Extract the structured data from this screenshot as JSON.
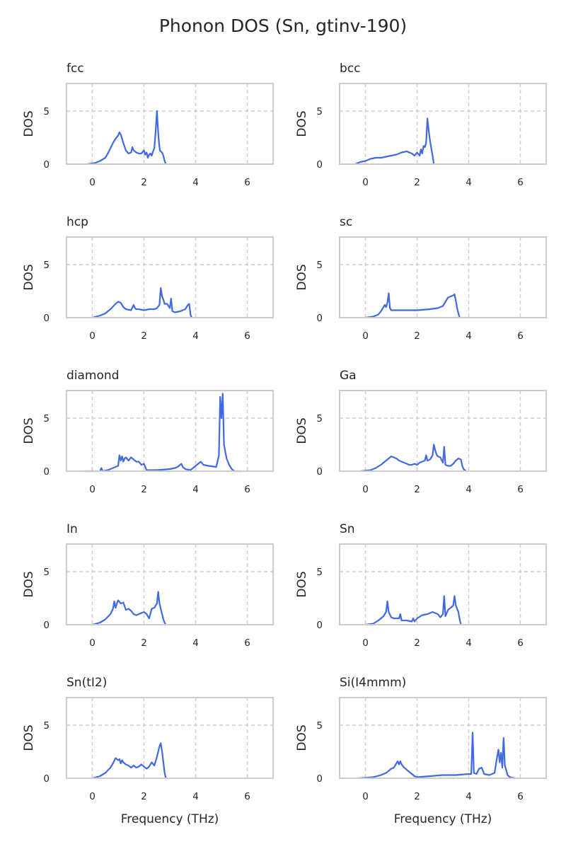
{
  "figure": {
    "title": "Phonon DOS (Sn, gtinv-190)",
    "line_color": "#4169e1",
    "grid_color": "#cccccc",
    "frame_color": "#cccccc"
  },
  "chart_data": [
    {
      "type": "line",
      "title": "fcc",
      "xlabel": "",
      "ylabel": "DOS",
      "xlim": [
        -1,
        7
      ],
      "ylim": [
        0,
        7.6
      ],
      "xticks": [
        0,
        2,
        4,
        6
      ],
      "yticks": [
        0,
        5
      ],
      "grid": true,
      "series": [
        {
          "x": [
            -0.2,
            0.1,
            0.3,
            0.5,
            0.6,
            0.7,
            0.8,
            0.9,
            1.0,
            1.05,
            1.1,
            1.2,
            1.3,
            1.4,
            1.5,
            1.55,
            1.6,
            1.7,
            1.8,
            1.9,
            2.0,
            2.05,
            2.1,
            2.15,
            2.2,
            2.25,
            2.3,
            2.35,
            2.4,
            2.45,
            2.5,
            2.55,
            2.58,
            2.62,
            2.65,
            2.7,
            2.75,
            2.8,
            2.85
          ],
          "y": [
            0,
            0.1,
            0.3,
            0.6,
            1.0,
            1.5,
            2.0,
            2.4,
            2.7,
            3.0,
            2.8,
            2.0,
            1.3,
            1.0,
            1.1,
            1.6,
            1.3,
            1.1,
            1.0,
            1.0,
            1.3,
            0.9,
            1.1,
            0.6,
            0.9,
            1.0,
            0.8,
            1.2,
            1.5,
            3.0,
            5.0,
            3.0,
            2.0,
            1.3,
            1.2,
            1.1,
            0.8,
            0.3,
            0
          ]
        }
      ]
    },
    {
      "type": "line",
      "title": "bcc",
      "xlabel": "",
      "ylabel": "DOS",
      "xlim": [
        -1,
        7
      ],
      "ylim": [
        0,
        7.6
      ],
      "xticks": [
        0,
        2,
        4,
        6
      ],
      "yticks": [
        0,
        5
      ],
      "grid": true,
      "series": [
        {
          "x": [
            -0.4,
            -0.2,
            0.0,
            0.2,
            0.4,
            0.6,
            0.8,
            1.0,
            1.2,
            1.4,
            1.6,
            1.7,
            1.8,
            1.9,
            2.0,
            2.1,
            2.15,
            2.2,
            2.25,
            2.3,
            2.35,
            2.4,
            2.45,
            2.5,
            2.55,
            2.6,
            2.65
          ],
          "y": [
            0,
            0.2,
            0.3,
            0.5,
            0.6,
            0.6,
            0.7,
            0.8,
            0.9,
            1.1,
            1.2,
            1.1,
            1.0,
            0.8,
            1.1,
            0.8,
            1.4,
            1.0,
            1.7,
            1.6,
            2.0,
            4.3,
            3.2,
            2.2,
            1.5,
            0.8,
            0
          ]
        }
      ]
    },
    {
      "type": "line",
      "title": "hcp",
      "xlabel": "",
      "ylabel": "DOS",
      "xlim": [
        -1,
        7
      ],
      "ylim": [
        0,
        7.6
      ],
      "xticks": [
        0,
        2,
        4,
        6
      ],
      "yticks": [
        0,
        5
      ],
      "grid": true,
      "series": [
        {
          "x": [
            0.0,
            0.3,
            0.5,
            0.7,
            0.9,
            1.0,
            1.1,
            1.2,
            1.3,
            1.5,
            1.6,
            1.65,
            1.7,
            1.8,
            2.0,
            2.2,
            2.4,
            2.5,
            2.6,
            2.65,
            2.7,
            2.75,
            2.8,
            2.9,
            3.0,
            3.05,
            3.1,
            3.2,
            3.4,
            3.6,
            3.7,
            3.75,
            3.8,
            3.85
          ],
          "y": [
            0,
            0.2,
            0.4,
            0.8,
            1.3,
            1.5,
            1.4,
            1.0,
            0.8,
            0.7,
            1.2,
            0.9,
            0.8,
            0.8,
            0.7,
            0.8,
            0.8,
            0.9,
            1.2,
            2.8,
            2.0,
            1.7,
            1.3,
            1.3,
            0.9,
            1.8,
            0.6,
            0.5,
            0.6,
            0.8,
            1.2,
            1.3,
            0.3,
            0
          ]
        }
      ]
    },
    {
      "type": "line",
      "title": "sc",
      "xlabel": "",
      "ylabel": "DOS",
      "xlim": [
        -1,
        7
      ],
      "ylim": [
        0,
        7.6
      ],
      "xticks": [
        0,
        2,
        4,
        6
      ],
      "yticks": [
        0,
        5
      ],
      "grid": true,
      "series": [
        {
          "x": [
            0.0,
            0.3,
            0.5,
            0.6,
            0.7,
            0.75,
            0.8,
            0.85,
            0.9,
            0.95,
            1.0,
            1.5,
            2.0,
            2.5,
            2.8,
            3.0,
            3.1,
            3.2,
            3.3,
            3.4,
            3.45,
            3.5,
            3.55,
            3.6,
            3.65
          ],
          "y": [
            0,
            0.1,
            0.3,
            0.6,
            1.0,
            1.2,
            1.0,
            1.4,
            2.3,
            0.9,
            0.7,
            0.7,
            0.7,
            0.8,
            0.9,
            1.1,
            1.5,
            1.9,
            2.0,
            2.1,
            2.2,
            1.6,
            0.9,
            0.4,
            0
          ]
        }
      ]
    },
    {
      "type": "line",
      "title": "diamond",
      "xlabel": "",
      "ylabel": "DOS",
      "xlim": [
        -1,
        7
      ],
      "ylim": [
        0,
        7.6
      ],
      "xticks": [
        0,
        2,
        4,
        6
      ],
      "yticks": [
        0,
        5
      ],
      "grid": true,
      "series": [
        {
          "x": [
            -0.3,
            0.3,
            0.35,
            0.4,
            0.6,
            0.8,
            1.0,
            1.05,
            1.1,
            1.15,
            1.2,
            1.25,
            1.3,
            1.4,
            1.5,
            1.6,
            1.7,
            1.8,
            1.9,
            2.0,
            2.1,
            2.5,
            3.0,
            3.2,
            3.3,
            3.4,
            3.45,
            3.5,
            3.6,
            3.8,
            4.0,
            4.1,
            4.2,
            4.3,
            4.5,
            4.8,
            4.9,
            4.95,
            5.0,
            5.05,
            5.1,
            5.15,
            5.2,
            5.3,
            5.4,
            5.5,
            5.8
          ],
          "y": [
            0,
            0,
            0.3,
            0,
            0.1,
            0.3,
            0.5,
            1.5,
            1.0,
            1.4,
            0.9,
            1.2,
            1.3,
            1.0,
            1.3,
            1.1,
            0.9,
            0.9,
            0.6,
            0.7,
            0.1,
            0.1,
            0.2,
            0.3,
            0.4,
            0.6,
            0.7,
            0.4,
            0.2,
            0.1,
            0.5,
            0.7,
            0.9,
            0.6,
            0.5,
            0.4,
            1.5,
            7.0,
            5.0,
            7.3,
            2.5,
            1.8,
            1.2,
            0.6,
            0.2,
            0,
            0
          ]
        }
      ]
    },
    {
      "type": "line",
      "title": "Ga",
      "xlabel": "",
      "ylabel": "DOS",
      "xlim": [
        -1,
        7
      ],
      "ylim": [
        0,
        7.6
      ],
      "xticks": [
        0,
        2,
        4,
        6
      ],
      "yticks": [
        0,
        5
      ],
      "grid": true,
      "series": [
        {
          "x": [
            -0.2,
            0.2,
            0.4,
            0.6,
            0.8,
            1.0,
            1.1,
            1.2,
            1.3,
            1.4,
            1.5,
            1.6,
            1.7,
            1.8,
            1.9,
            2.0,
            2.1,
            2.2,
            2.3,
            2.35,
            2.4,
            2.5,
            2.6,
            2.65,
            2.7,
            2.75,
            2.8,
            2.9,
            3.0,
            3.05,
            3.1,
            3.2,
            3.3,
            3.4,
            3.5,
            3.6,
            3.7,
            3.75,
            3.8,
            3.9
          ],
          "y": [
            0,
            0.1,
            0.3,
            0.6,
            1.0,
            1.4,
            1.3,
            1.2,
            1.0,
            0.9,
            0.8,
            0.7,
            0.6,
            0.6,
            0.7,
            0.6,
            0.8,
            0.9,
            1.0,
            1.5,
            1.0,
            1.1,
            1.5,
            2.5,
            2.0,
            1.6,
            1.4,
            1.3,
            0.8,
            2.3,
            0.6,
            0.5,
            0.5,
            0.7,
            1.0,
            1.2,
            1.1,
            0.5,
            0.2,
            0
          ]
        }
      ]
    },
    {
      "type": "line",
      "title": "In",
      "xlabel": "",
      "ylabel": "DOS",
      "xlim": [
        -1,
        7
      ],
      "ylim": [
        0,
        7.6
      ],
      "xticks": [
        0,
        2,
        4,
        6
      ],
      "yticks": [
        0,
        5
      ],
      "grid": true,
      "series": [
        {
          "x": [
            0.0,
            0.3,
            0.5,
            0.7,
            0.8,
            0.85,
            0.9,
            0.95,
            1.0,
            1.1,
            1.2,
            1.3,
            1.4,
            1.5,
            1.6,
            1.7,
            1.8,
            1.9,
            2.0,
            2.1,
            2.2,
            2.3,
            2.4,
            2.5,
            2.55,
            2.6,
            2.65,
            2.7,
            2.75,
            2.8,
            2.85
          ],
          "y": [
            0,
            0.2,
            0.5,
            1.0,
            1.5,
            2.2,
            1.6,
            2.0,
            2.3,
            2.0,
            2.1,
            1.4,
            1.5,
            1.3,
            1.0,
            0.9,
            1.0,
            1.1,
            1.2,
            1.0,
            0.6,
            1.5,
            1.6,
            2.0,
            3.1,
            2.0,
            1.5,
            1.0,
            0.5,
            0.2,
            0
          ]
        }
      ]
    },
    {
      "type": "line",
      "title": "Sn",
      "xlabel": "",
      "ylabel": "DOS",
      "xlim": [
        -1,
        7
      ],
      "ylim": [
        0,
        7.6
      ],
      "xticks": [
        0,
        2,
        4,
        6
      ],
      "yticks": [
        0,
        5
      ],
      "grid": true,
      "series": [
        {
          "x": [
            0.0,
            0.3,
            0.5,
            0.7,
            0.8,
            0.85,
            0.9,
            1.0,
            1.1,
            1.2,
            1.3,
            1.35,
            1.4,
            1.6,
            1.8,
            1.85,
            1.9,
            2.0,
            2.2,
            2.4,
            2.6,
            2.8,
            2.9,
            3.0,
            3.05,
            3.1,
            3.2,
            3.3,
            3.4,
            3.45,
            3.5,
            3.6,
            3.65,
            3.7
          ],
          "y": [
            0,
            0.1,
            0.4,
            0.8,
            1.2,
            2.2,
            1.2,
            0.7,
            0.6,
            0.6,
            0.6,
            1.0,
            0.4,
            0.4,
            0.3,
            0.6,
            0.3,
            0.6,
            0.9,
            1.0,
            1.2,
            1.0,
            0.7,
            1.0,
            2.7,
            0.8,
            1.4,
            1.6,
            1.8,
            2.7,
            1.8,
            1.2,
            0.5,
            0
          ]
        }
      ]
    },
    {
      "type": "line",
      "title": "Sn(tI2)",
      "xlabel": "Frequency (THz)",
      "ylabel": "DOS",
      "xlim": [
        -1,
        7
      ],
      "ylim": [
        0,
        7.6
      ],
      "xticks": [
        0,
        2,
        4,
        6
      ],
      "yticks": [
        0,
        5
      ],
      "grid": true,
      "series": [
        {
          "x": [
            0.0,
            0.3,
            0.5,
            0.7,
            0.8,
            0.9,
            1.0,
            1.05,
            1.1,
            1.15,
            1.2,
            1.3,
            1.4,
            1.5,
            1.6,
            1.7,
            1.8,
            1.9,
            2.0,
            2.1,
            2.2,
            2.3,
            2.4,
            2.5,
            2.55,
            2.6,
            2.65,
            2.7,
            2.75,
            2.8,
            2.85
          ],
          "y": [
            0,
            0.2,
            0.5,
            1.0,
            1.4,
            1.9,
            1.7,
            1.8,
            1.4,
            1.7,
            1.5,
            1.3,
            1.2,
            1.0,
            1.2,
            1.0,
            1.1,
            1.3,
            1.1,
            0.9,
            1.1,
            1.5,
            1.2,
            2.0,
            2.5,
            3.0,
            3.3,
            2.5,
            1.5,
            0.5,
            0
          ]
        }
      ]
    },
    {
      "type": "line",
      "title": "Si(I4mmm)",
      "xlabel": "Frequency (THz)",
      "ylabel": "DOS",
      "xlim": [
        -1,
        7
      ],
      "ylim": [
        0,
        7.6
      ],
      "xticks": [
        0,
        2,
        4,
        6
      ],
      "yticks": [
        0,
        5
      ],
      "grid": true,
      "series": [
        {
          "x": [
            -0.3,
            0.3,
            0.6,
            0.8,
            0.9,
            1.0,
            1.1,
            1.2,
            1.25,
            1.3,
            1.35,
            1.4,
            1.5,
            1.6,
            1.7,
            1.8,
            1.9,
            2.0,
            2.5,
            3.0,
            3.5,
            4.0,
            4.1,
            4.15,
            4.2,
            4.3,
            4.4,
            4.5,
            4.6,
            4.8,
            5.0,
            5.1,
            5.15,
            5.2,
            5.25,
            5.3,
            5.35,
            5.4,
            5.45,
            5.5,
            5.6,
            5.8
          ],
          "y": [
            0,
            0.1,
            0.3,
            0.5,
            0.7,
            0.9,
            1.0,
            1.4,
            1.6,
            1.3,
            1.6,
            1.3,
            1.0,
            0.8,
            0.6,
            0.4,
            0.2,
            0.1,
            0.2,
            0.3,
            0.3,
            0.4,
            0.4,
            4.3,
            0.5,
            0.4,
            0.9,
            1.0,
            0.4,
            0.3,
            0.5,
            2.0,
            2.7,
            1.5,
            2.4,
            1.0,
            3.8,
            1.2,
            0.8,
            0.3,
            0.1,
            0
          ]
        }
      ]
    }
  ]
}
